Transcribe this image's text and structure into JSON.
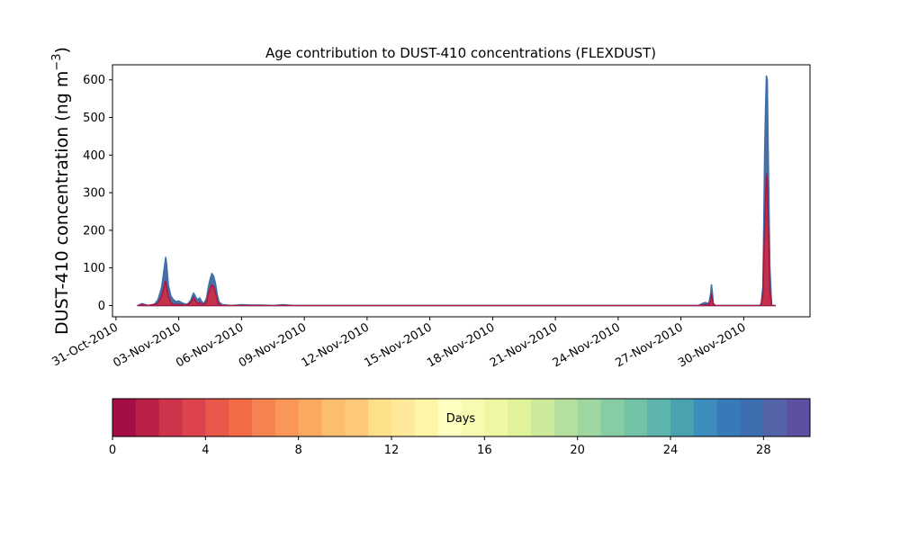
{
  "chart_data": [
    {
      "type": "area",
      "title": "Age contribution to DUST-410 concentrations (FLEXDUST)",
      "ylabel": "DUST-410 concentration (ng m",
      "ylabel_exp": "−3",
      "ylabel_close": ")",
      "xlabel": "",
      "x_axis": "date",
      "xlim": [
        "2010-10-30T20:00",
        "2010-12-03T04:00"
      ],
      "ylim": [
        -30,
        640
      ],
      "x_ticks": [
        "31-Oct-2010",
        "03-Nov-2010",
        "06-Nov-2010",
        "09-Nov-2010",
        "12-Nov-2010",
        "15-Nov-2010",
        "18-Nov-2010",
        "21-Nov-2010",
        "24-Nov-2010",
        "27-Nov-2010",
        "30-Nov-2010"
      ],
      "x_tick_dates": [
        "2010-10-31",
        "2010-11-03",
        "2010-11-06",
        "2010-11-09",
        "2010-11-12",
        "2010-11-15",
        "2010-11-18",
        "2010-11-21",
        "2010-11-24",
        "2010-11-27",
        "2010-11-30"
      ],
      "y_ticks": [
        0,
        100,
        200,
        300,
        400,
        500,
        600
      ],
      "grid": false,
      "legend": "none",
      "series": [
        {
          "color": "#4a6fa5",
          "stroke": "#3f6fa8",
          "points": [
            [
              "2010-11-01T01:00",
              0
            ],
            [
              "2010-11-01T03:00",
              2
            ],
            [
              "2010-11-01T06:00",
              5
            ],
            [
              "2010-11-01T10:00",
              2
            ],
            [
              "2010-11-01T14:00",
              0
            ],
            [
              "2010-11-01T20:00",
              3
            ],
            [
              "2010-11-02T00:00",
              15
            ],
            [
              "2010-11-02T04:00",
              45
            ],
            [
              "2010-11-02T06:00",
              75
            ],
            [
              "2010-11-02T08:00",
              110
            ],
            [
              "2010-11-02T09:00",
              128
            ],
            [
              "2010-11-02T10:00",
              110
            ],
            [
              "2010-11-02T12:00",
              55
            ],
            [
              "2010-11-02T15:00",
              25
            ],
            [
              "2010-11-02T18:00",
              15
            ],
            [
              "2010-11-02T21:00",
              10
            ],
            [
              "2010-11-03T00:00",
              12
            ],
            [
              "2010-11-03T03:00",
              8
            ],
            [
              "2010-11-03T06:00",
              5
            ],
            [
              "2010-11-03T10:00",
              3
            ],
            [
              "2010-11-03T14:00",
              15
            ],
            [
              "2010-11-03T16:00",
              28
            ],
            [
              "2010-11-03T17:00",
              33
            ],
            [
              "2010-11-03T19:00",
              25
            ],
            [
              "2010-11-03T21:00",
              15
            ],
            [
              "2010-11-04T00:00",
              20
            ],
            [
              "2010-11-04T02:00",
              12
            ],
            [
              "2010-11-04T05:00",
              5
            ],
            [
              "2010-11-04T08:00",
              20
            ],
            [
              "2010-11-04T10:00",
              50
            ],
            [
              "2010-11-04T12:00",
              70
            ],
            [
              "2010-11-04T14:00",
              85
            ],
            [
              "2010-11-04T16:00",
              78
            ],
            [
              "2010-11-04T18:00",
              60
            ],
            [
              "2010-11-04T20:00",
              30
            ],
            [
              "2010-11-04T22:00",
              10
            ],
            [
              "2010-11-05T02:00",
              2
            ],
            [
              "2010-11-05T12:00",
              0
            ],
            [
              "2010-11-06T00:00",
              2
            ],
            [
              "2010-11-06T12:00",
              1
            ],
            [
              "2010-11-07T00:00",
              1
            ],
            [
              "2010-11-07T12:00",
              0
            ],
            [
              "2010-11-08T00:00",
              2
            ],
            [
              "2010-11-08T12:00",
              0
            ],
            [
              "2010-11-27T20:00",
              0
            ],
            [
              "2010-11-28T00:00",
              5
            ],
            [
              "2010-11-28T04:00",
              8
            ],
            [
              "2010-11-28T08:00",
              5
            ],
            [
              "2010-11-28T10:00",
              30
            ],
            [
              "2010-11-28T11:00",
              55
            ],
            [
              "2010-11-28T12:00",
              35
            ],
            [
              "2010-11-28T13:00",
              5
            ],
            [
              "2010-11-28T16:00",
              0
            ],
            [
              "2010-11-30T18:00",
              0
            ],
            [
              "2010-11-30T20:00",
              5
            ],
            [
              "2010-11-30T22:00",
              50
            ],
            [
              "2010-11-30T23:00",
              220
            ],
            [
              "2010-12-01T00:00",
              400
            ],
            [
              "2010-12-01T01:00",
              520
            ],
            [
              "2010-12-01T02:00",
              610
            ],
            [
              "2010-12-01T03:00",
              600
            ],
            [
              "2010-12-01T04:00",
              420
            ],
            [
              "2010-12-01T05:00",
              250
            ],
            [
              "2010-12-01T06:00",
              100
            ],
            [
              "2010-12-01T08:00",
              0
            ],
            [
              "2010-12-01T12:00",
              0
            ]
          ]
        },
        {
          "color": "#c5304a",
          "stroke": "#a51b45",
          "points": [
            [
              "2010-11-01T01:00",
              0
            ],
            [
              "2010-11-01T06:00",
              2
            ],
            [
              "2010-11-01T12:00",
              0
            ],
            [
              "2010-11-02T00:00",
              5
            ],
            [
              "2010-11-02T04:00",
              25
            ],
            [
              "2010-11-02T06:00",
              40
            ],
            [
              "2010-11-02T08:00",
              58
            ],
            [
              "2010-11-02T09:00",
              65
            ],
            [
              "2010-11-02T10:00",
              50
            ],
            [
              "2010-11-02T12:00",
              25
            ],
            [
              "2010-11-02T15:00",
              8
            ],
            [
              "2010-11-02T18:00",
              2
            ],
            [
              "2010-11-03T00:00",
              3
            ],
            [
              "2010-11-03T08:00",
              0
            ],
            [
              "2010-11-03T14:00",
              8
            ],
            [
              "2010-11-03T16:00",
              18
            ],
            [
              "2010-11-03T17:00",
              22
            ],
            [
              "2010-11-03T19:00",
              12
            ],
            [
              "2010-11-03T21:00",
              6
            ],
            [
              "2010-11-04T00:00",
              8
            ],
            [
              "2010-11-04T02:00",
              5
            ],
            [
              "2010-11-04T05:00",
              2
            ],
            [
              "2010-11-04T08:00",
              12
            ],
            [
              "2010-11-04T10:00",
              32
            ],
            [
              "2010-11-04T12:00",
              45
            ],
            [
              "2010-11-04T14:00",
              55
            ],
            [
              "2010-11-04T16:00",
              50
            ],
            [
              "2010-11-04T18:00",
              35
            ],
            [
              "2010-11-04T20:00",
              15
            ],
            [
              "2010-11-04T22:00",
              3
            ],
            [
              "2010-11-05T02:00",
              0
            ],
            [
              "2010-11-27T20:00",
              0
            ],
            [
              "2010-11-28T04:00",
              2
            ],
            [
              "2010-11-28T08:00",
              2
            ],
            [
              "2010-11-28T10:00",
              15
            ],
            [
              "2010-11-28T11:00",
              30
            ],
            [
              "2010-11-28T12:00",
              18
            ],
            [
              "2010-11-28T13:00",
              2
            ],
            [
              "2010-11-28T16:00",
              0
            ],
            [
              "2010-11-30T20:00",
              0
            ],
            [
              "2010-11-30T22:00",
              30
            ],
            [
              "2010-11-30T23:00",
              120
            ],
            [
              "2010-12-01T00:00",
              200
            ],
            [
              "2010-12-01T01:00",
              280
            ],
            [
              "2010-12-01T02:00",
              350
            ],
            [
              "2010-12-01T03:00",
              330
            ],
            [
              "2010-12-01T04:00",
              220
            ],
            [
              "2010-12-01T05:00",
              120
            ],
            [
              "2010-12-01T06:00",
              40
            ],
            [
              "2010-12-01T08:00",
              0
            ],
            [
              "2010-12-01T12:00",
              0
            ]
          ]
        }
      ]
    },
    {
      "type": "colorbar",
      "label": "Days",
      "range": [
        0,
        30
      ],
      "ticks": [
        0,
        4,
        8,
        12,
        16,
        20,
        24,
        28
      ],
      "bins": 30,
      "colors": [
        "#a50d45",
        "#bb2148",
        "#cd344b",
        "#dc434c",
        "#e8574a",
        "#f26c45",
        "#f68151",
        "#f99658",
        "#fcaa61",
        "#fdbe6e",
        "#fec97b",
        "#fee08b",
        "#fee99a",
        "#fff5a9",
        "#ffffbf",
        "#f7fbb2",
        "#eef8a3",
        "#e0f29a",
        "#cbea9c",
        "#b5e09e",
        "#9dd6a1",
        "#86cda3",
        "#72c3a6",
        "#5db4aa",
        "#4aa1b0",
        "#3c8dbb",
        "#367bb7",
        "#3f6eb0",
        "#5462a8",
        "#5e4fa2"
      ]
    }
  ]
}
